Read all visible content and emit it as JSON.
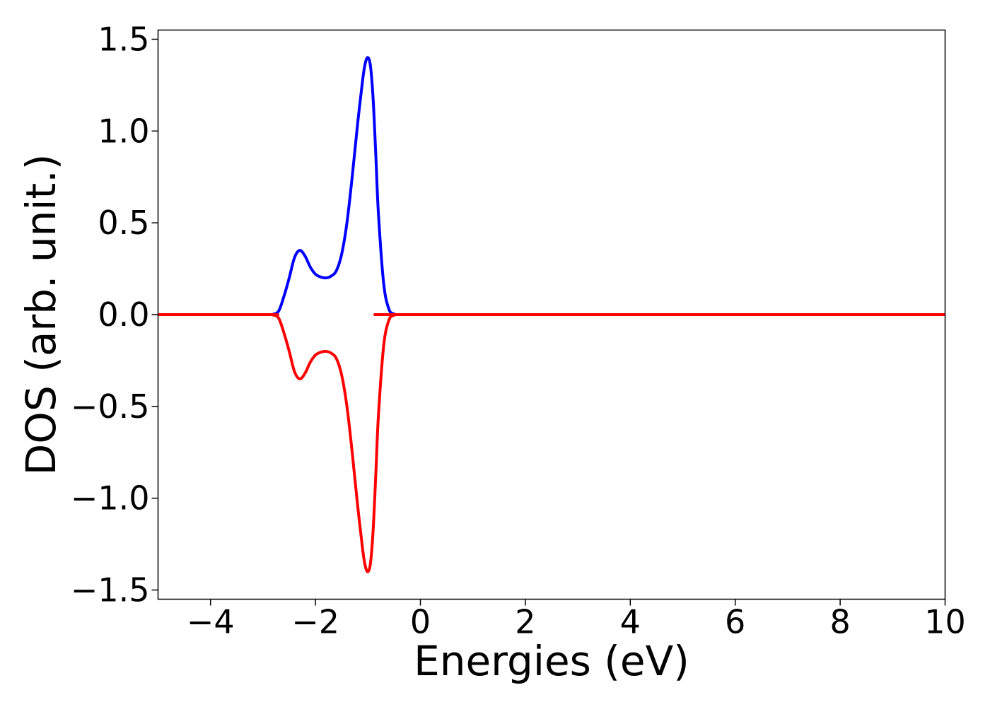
{
  "chart_data": {
    "type": "line",
    "title": "",
    "xlabel": "Energies (eV)",
    "ylabel": "DOS (arb. unit.)",
    "xlim": [
      -5,
      10
    ],
    "ylim": [
      -1.55,
      1.55
    ],
    "xticks": [
      -4,
      -2,
      0,
      2,
      4,
      6,
      8,
      10
    ],
    "xtick_labels": [
      "−4",
      "−2",
      "0",
      "2",
      "4",
      "6",
      "8",
      "10"
    ],
    "yticks": [
      1.5,
      1.0,
      0.5,
      0.0,
      -0.5,
      -1.0,
      -1.5
    ],
    "ytick_labels": [
      "1.5",
      "1.0",
      "0.5",
      "0.0",
      "−0.5",
      "−1.0",
      "−1.5"
    ],
    "grid": false,
    "legend": false,
    "series": [
      {
        "color": "#0000ff",
        "x": [
          -5.0,
          -2.9,
          -2.8,
          -2.7,
          -2.6,
          -2.5,
          -2.4,
          -2.3,
          -2.2,
          -2.1,
          -2.0,
          -1.9,
          -1.8,
          -1.7,
          -1.6,
          -1.5,
          -1.4,
          -1.3,
          -1.2,
          -1.1,
          -1.05,
          -1.0,
          -0.95,
          -0.9,
          -0.85,
          -0.8,
          -0.7,
          -0.6,
          -0.5,
          -0.4,
          0.0,
          10.0
        ],
        "y": [
          0.0,
          0.0,
          0.003,
          0.02,
          0.1,
          0.2,
          0.31,
          0.35,
          0.32,
          0.26,
          0.22,
          0.205,
          0.2,
          0.21,
          0.24,
          0.33,
          0.5,
          0.75,
          1.03,
          1.28,
          1.37,
          1.4,
          1.35,
          1.17,
          0.87,
          0.55,
          0.17,
          0.03,
          0.003,
          0.0,
          0.0,
          0.0
        ]
      },
      {
        "color": "#ff0000",
        "x": [
          -5.0,
          -2.9,
          -2.8,
          -2.7,
          -2.6,
          -2.5,
          -2.4,
          -2.3,
          -2.2,
          -2.1,
          -2.0,
          -1.9,
          -1.8,
          -1.7,
          -1.6,
          -1.5,
          -1.4,
          -1.3,
          -1.2,
          -1.1,
          -1.05,
          -1.0,
          -0.95,
          -0.9,
          -0.85,
          -0.8,
          -0.7,
          -0.6,
          -0.5,
          -0.4,
          0.0,
          10.0
        ],
        "y": [
          0.0,
          0.0,
          -0.003,
          -0.02,
          -0.1,
          -0.2,
          -0.31,
          -0.35,
          -0.32,
          -0.26,
          -0.22,
          -0.205,
          -0.2,
          -0.21,
          -0.24,
          -0.33,
          -0.5,
          -0.75,
          -1.03,
          -1.28,
          -1.37,
          -1.4,
          -1.35,
          -1.17,
          -0.87,
          -0.55,
          -0.17,
          -0.03,
          -0.003,
          0.0,
          0.0,
          0.0
        ]
      }
    ]
  }
}
